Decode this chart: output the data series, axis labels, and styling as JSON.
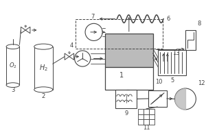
{
  "lc": "#444444",
  "cc": "#bbbbbb",
  "fs": 6,
  "fig_w": 3.0,
  "fig_h": 2.0,
  "dpi": 100
}
